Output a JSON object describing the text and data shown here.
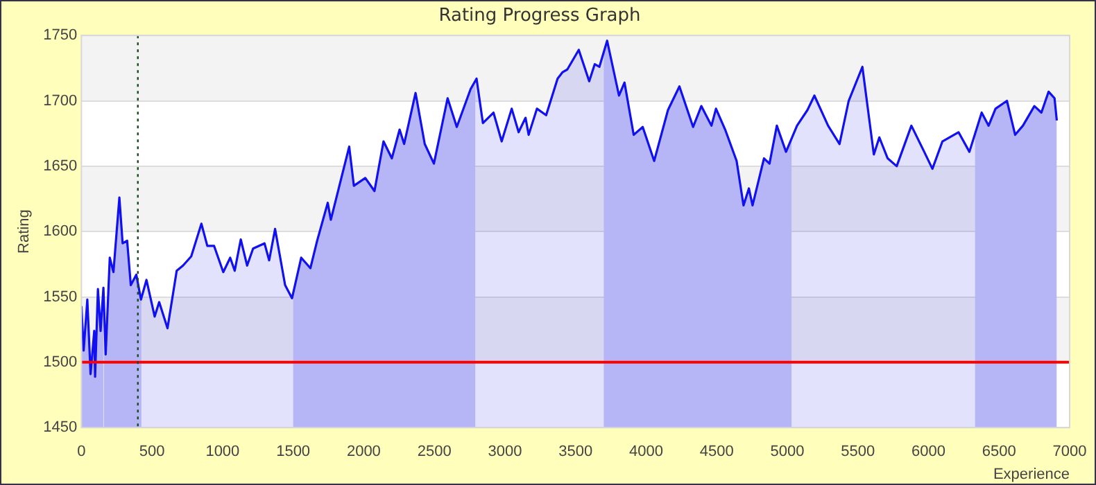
{
  "chart_data": {
    "type": "area",
    "title": "Rating Progress Graph",
    "xlabel": "Experience",
    "ylabel": "Rating",
    "xlim": [
      0,
      7000
    ],
    "xticks": [
      0,
      500,
      1000,
      1500,
      2000,
      2500,
      3000,
      3500,
      4000,
      4500,
      5000,
      5500,
      6000,
      6500,
      7000
    ],
    "ylim": [
      1450,
      1750
    ],
    "yticks": [
      1450,
      1500,
      1550,
      1600,
      1650,
      1700,
      1750
    ],
    "grid": "y",
    "legend": false,
    "marker": "none",
    "line_style": "solid",
    "series": [
      {
        "color": "#1010f0",
        "x": [
          0,
          16,
          42,
          65,
          91,
          97,
          117,
          136,
          156,
          172,
          201,
          227,
          269,
          292,
          324,
          350,
          389,
          422,
          461,
          519,
          551,
          610,
          675,
          720,
          778,
          850,
          892,
          940,
          1005,
          1054,
          1086,
          1129,
          1174,
          1216,
          1297,
          1330,
          1372,
          1443,
          1492,
          1557,
          1622,
          1670,
          1745,
          1767,
          1897,
          1930,
          2011,
          2076,
          2140,
          2199,
          2254,
          2286,
          2367,
          2432,
          2497,
          2594,
          2659,
          2757,
          2799,
          2844,
          2919,
          2977,
          3048,
          3097,
          3146,
          3168,
          3227,
          3292,
          3373,
          3409,
          3442,
          3523,
          3597,
          3636,
          3669,
          3724,
          3808,
          3847,
          3912,
          3976,
          4057,
          4155,
          4236,
          4333,
          4391,
          4463,
          4495,
          4560,
          4641,
          4690,
          4728,
          4754,
          4835,
          4874,
          4926,
          4991,
          5069,
          5143,
          5192,
          5289,
          5370,
          5435,
          5532,
          5613,
          5652,
          5711,
          5775,
          5879,
          5970,
          6028,
          6099,
          6213,
          6290,
          6377,
          6426,
          6475,
          6556,
          6614,
          6669,
          6750,
          6800,
          6851,
          6893,
          6909
        ],
        "values": [
          1543,
          1509,
          1548,
          1491,
          1524,
          1489,
          1556,
          1524,
          1557,
          1506,
          1580,
          1569,
          1626,
          1591,
          1593,
          1559,
          1567,
          1548,
          1563,
          1535,
          1546,
          1526,
          1570,
          1574,
          1581,
          1606,
          1589,
          1589,
          1569,
          1580,
          1570,
          1594,
          1574,
          1587,
          1591,
          1578,
          1602,
          1559,
          1549,
          1580,
          1572,
          1593,
          1622,
          1609,
          1665,
          1635,
          1641,
          1631,
          1669,
          1656,
          1678,
          1667,
          1706,
          1667,
          1652,
          1702,
          1680,
          1709,
          1717,
          1683,
          1691,
          1669,
          1694,
          1676,
          1687,
          1674,
          1694,
          1689,
          1717,
          1722,
          1724,
          1739,
          1715,
          1728,
          1726,
          1746,
          1704,
          1714,
          1674,
          1680,
          1654,
          1693,
          1711,
          1680,
          1696,
          1681,
          1694,
          1678,
          1654,
          1620,
          1633,
          1620,
          1656,
          1652,
          1681,
          1661,
          1681,
          1693,
          1704,
          1681,
          1667,
          1700,
          1726,
          1659,
          1672,
          1656,
          1650,
          1681,
          1661,
          1648,
          1669,
          1676,
          1661,
          1691,
          1681,
          1694,
          1700,
          1674,
          1681,
          1696,
          1691,
          1707,
          1702,
          1685
        ]
      }
    ],
    "ref_lines": [
      {
        "axis": "y",
        "value": 1500,
        "color": "#ff0000",
        "line_style": "solid"
      },
      {
        "axis": "x",
        "value": 400,
        "color": "#1a4a1a",
        "line_style": "dotted"
      }
    ],
    "bands": [
      {
        "axis": "x",
        "from": 0,
        "to": 155,
        "color": "#cdcdf8"
      },
      {
        "axis": "x",
        "from": 160,
        "to": 425,
        "color": "#cdcdf8"
      },
      {
        "axis": "x",
        "from": 1500,
        "to": 2790,
        "color": "#cdcdf8"
      },
      {
        "axis": "x",
        "from": 3700,
        "to": 5030,
        "color": "#cdcdf8"
      },
      {
        "axis": "x",
        "from": 6330,
        "to": 6909,
        "color": "#cdcdf8"
      }
    ]
  }
}
